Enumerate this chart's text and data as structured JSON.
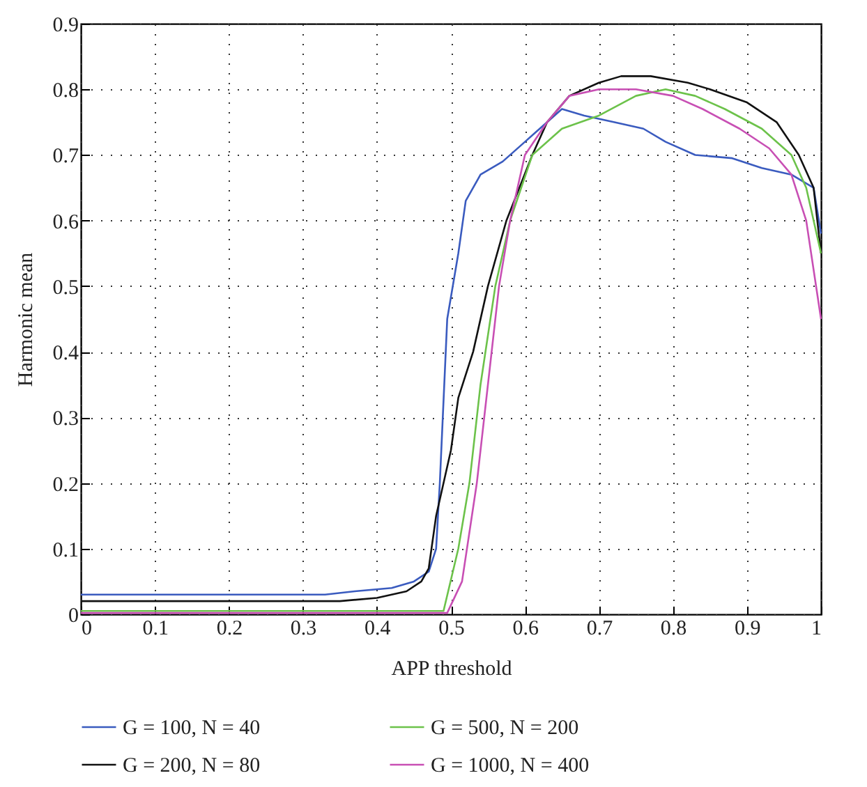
{
  "chart_data": {
    "type": "line",
    "xlabel": "APP threshold",
    "ylabel": "Harmonic mean",
    "xlim": [
      0,
      1
    ],
    "ylim": [
      0,
      0.9
    ],
    "xticks": [
      0,
      0.1,
      0.2,
      0.3,
      0.4,
      0.5,
      0.6,
      0.7,
      0.8,
      0.9,
      1
    ],
    "yticks": [
      0,
      0.1,
      0.2,
      0.3,
      0.4,
      0.5,
      0.6,
      0.7,
      0.8,
      0.9
    ],
    "grid": true,
    "legend": "bottom",
    "line_style": "solid",
    "series": [
      {
        "name": "G = 100, N = 40",
        "color": "#3a5bbf",
        "x": [
          0,
          0.33,
          0.37,
          0.42,
          0.45,
          0.47,
          0.48,
          0.485,
          0.495,
          0.51,
          0.52,
          0.54,
          0.57,
          0.6,
          0.62,
          0.65,
          0.68,
          0.72,
          0.76,
          0.79,
          0.83,
          0.88,
          0.92,
          0.96,
          0.99,
          1
        ],
        "values": [
          0.03,
          0.03,
          0.035,
          0.04,
          0.05,
          0.065,
          0.1,
          0.2,
          0.45,
          0.55,
          0.63,
          0.67,
          0.69,
          0.72,
          0.74,
          0.77,
          0.76,
          0.75,
          0.74,
          0.72,
          0.7,
          0.695,
          0.68,
          0.67,
          0.65,
          0.58
        ]
      },
      {
        "name": "G = 200, N = 80",
        "color": "#111111",
        "x": [
          0,
          0.35,
          0.4,
          0.44,
          0.46,
          0.47,
          0.48,
          0.5,
          0.51,
          0.53,
          0.55,
          0.575,
          0.61,
          0.63,
          0.66,
          0.7,
          0.73,
          0.77,
          0.82,
          0.85,
          0.9,
          0.94,
          0.97,
          0.99,
          1
        ],
        "values": [
          0.02,
          0.02,
          0.025,
          0.035,
          0.05,
          0.07,
          0.15,
          0.25,
          0.33,
          0.4,
          0.5,
          0.6,
          0.7,
          0.75,
          0.79,
          0.81,
          0.82,
          0.82,
          0.81,
          0.8,
          0.78,
          0.75,
          0.7,
          0.65,
          0.55
        ]
      },
      {
        "name": "G = 500, N = 200",
        "color": "#6cc24a",
        "x": [
          0,
          0.49,
          0.51,
          0.525,
          0.54,
          0.56,
          0.58,
          0.61,
          0.65,
          0.7,
          0.75,
          0.79,
          0.83,
          0.87,
          0.92,
          0.96,
          0.98,
          1
        ],
        "values": [
          0.005,
          0.005,
          0.1,
          0.2,
          0.35,
          0.5,
          0.6,
          0.7,
          0.74,
          0.76,
          0.79,
          0.8,
          0.79,
          0.77,
          0.74,
          0.7,
          0.65,
          0.55
        ]
      },
      {
        "name": "G = 1000, N = 400",
        "color": "#c84fb4",
        "x": [
          0,
          0.495,
          0.515,
          0.535,
          0.55,
          0.565,
          0.58,
          0.6,
          0.63,
          0.66,
          0.7,
          0.75,
          0.8,
          0.84,
          0.89,
          0.93,
          0.96,
          0.98,
          1
        ],
        "values": [
          0.002,
          0.002,
          0.05,
          0.2,
          0.35,
          0.5,
          0.6,
          0.7,
          0.75,
          0.79,
          0.8,
          0.8,
          0.79,
          0.77,
          0.74,
          0.71,
          0.67,
          0.6,
          0.45
        ]
      }
    ]
  }
}
